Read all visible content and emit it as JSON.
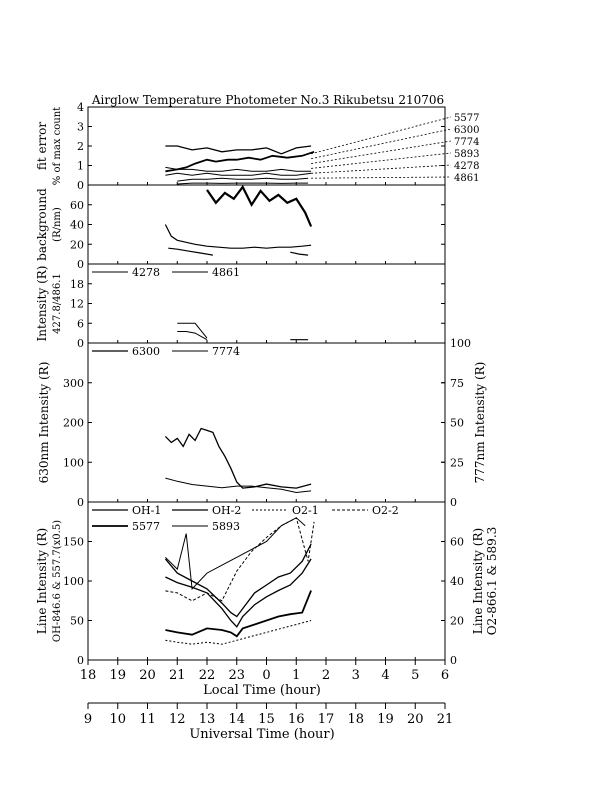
{
  "title": "Airglow Temperature Photometer No.3  Rikubetsu   210706",
  "axes": {
    "local_time_label": "Local Time (hour)",
    "universal_time_label": "Universal Time (hour)",
    "local_ticks": [
      "18",
      "19",
      "20",
      "21",
      "22",
      "23",
      "0",
      "1",
      "2",
      "3",
      "4",
      "5",
      "6"
    ],
    "universal_ticks": [
      "9",
      "10",
      "11",
      "12",
      "13",
      "14",
      "15",
      "16",
      "17",
      "18",
      "19",
      "20",
      "21"
    ]
  },
  "chart_data": [
    {
      "type": "line",
      "panel": "fit-error",
      "ylabel": [
        "fit error",
        "% of max count"
      ],
      "ylim": [
        0,
        4
      ],
      "yticks": [
        "0",
        "1",
        "2",
        "3",
        "4"
      ],
      "x_unit": "local hour (18 = 18:00, 30 = 06:00 next day)",
      "right_labels": [
        "5577",
        "6300",
        "7774",
        "5893",
        "4278",
        "4861"
      ],
      "series": [
        {
          "name": "6300",
          "x": [
            20.6,
            21,
            21.5,
            22,
            22.5,
            23,
            23.5,
            24,
            24.5,
            25,
            25.5
          ],
          "y": [
            2.0,
            2.0,
            1.8,
            1.9,
            1.7,
            1.8,
            1.8,
            1.9,
            1.6,
            1.9,
            2.0
          ]
        },
        {
          "name": "5577",
          "x": [
            20.6,
            21,
            21.3,
            21.6,
            22,
            22.3,
            22.7,
            23,
            23.4,
            23.8,
            24.2,
            24.7,
            25.2,
            25.6
          ],
          "y": [
            0.7,
            0.8,
            0.9,
            1.1,
            1.3,
            1.2,
            1.3,
            1.3,
            1.4,
            1.3,
            1.5,
            1.4,
            1.5,
            1.7
          ]
        },
        {
          "name": "7774",
          "x": [
            20.6,
            21,
            21.5,
            22,
            22.5,
            23,
            23.5,
            24,
            24.5,
            25,
            25.5
          ],
          "y": [
            0.9,
            0.8,
            0.8,
            0.7,
            0.7,
            0.8,
            0.7,
            0.7,
            0.8,
            0.7,
            0.7
          ]
        },
        {
          "name": "5893",
          "x": [
            20.6,
            21,
            21.5,
            22,
            22.5,
            23,
            23.5,
            24,
            24.5,
            25,
            25.5
          ],
          "y": [
            0.5,
            0.6,
            0.5,
            0.6,
            0.5,
            0.5,
            0.5,
            0.6,
            0.5,
            0.5,
            0.6
          ]
        },
        {
          "name": "4278",
          "x": [
            21,
            21.5,
            22,
            22.5,
            23,
            23.5,
            24,
            24.5,
            25,
            25.4
          ],
          "y": [
            0.2,
            0.3,
            0.3,
            0.35,
            0.3,
            0.3,
            0.35,
            0.3,
            0.3,
            0.35
          ]
        },
        {
          "name": "4861",
          "x": [
            21,
            21.5,
            22,
            22.5,
            23,
            23.5,
            24,
            24.5,
            25,
            25.4
          ],
          "y": [
            0.05,
            0.1,
            0.1,
            0.08,
            0.1,
            0.1,
            0.1,
            0.08,
            0.1,
            0.1
          ]
        }
      ]
    },
    {
      "type": "line",
      "panel": "background",
      "ylabel": [
        "background",
        "(R/nm)"
      ],
      "ylim": [
        0,
        80
      ],
      "yticks": [
        "0",
        "20",
        "40",
        "60"
      ],
      "series": [
        {
          "name": "bg-1",
          "x": [
            20.6,
            20.8,
            21,
            21.3,
            21.6,
            22,
            22.4,
            22.8,
            23.2,
            23.6,
            24,
            24.4,
            24.8,
            25.2,
            25.5
          ],
          "y": [
            40,
            28,
            24,
            22,
            20,
            18,
            17,
            16,
            16,
            17,
            16,
            17,
            17,
            18,
            19
          ]
        },
        {
          "name": "bg-2",
          "x": [
            20.7,
            21,
            21.4,
            21.8,
            22.2
          ],
          "y": [
            16,
            15,
            13,
            11,
            9
          ]
        },
        {
          "name": "bg-3",
          "x": [
            22,
            22.3,
            22.6,
            22.9,
            23.2,
            23.5,
            23.8,
            24.1,
            24.4,
            24.7,
            25,
            25.3,
            25.5
          ],
          "y": [
            75,
            62,
            72,
            66,
            78,
            60,
            74,
            64,
            70,
            62,
            66,
            52,
            38
          ]
        },
        {
          "name": "bg-4",
          "x": [
            24.8,
            25.1,
            25.4
          ],
          "y": [
            12,
            10,
            9
          ]
        }
      ]
    },
    {
      "type": "line",
      "panel": "blue-lines",
      "ylabel": [
        "Intensity (R)",
        "427.8/486.1"
      ],
      "ylim": [
        0,
        24
      ],
      "yticks": [
        "0",
        "6",
        "12",
        "18"
      ],
      "legend": [
        "4278",
        "4861"
      ],
      "series": [
        {
          "name": "4278",
          "x": [
            21,
            21.3,
            21.6,
            22
          ],
          "y": [
            6,
            6,
            6,
            1.5
          ]
        },
        {
          "name": "4861",
          "x": [
            21,
            21.3,
            21.6,
            22
          ],
          "y": [
            3.5,
            3.5,
            3.0,
            1.0
          ]
        },
        {
          "name": "4861-tail",
          "x": [
            24.8,
            25.4
          ],
          "y": [
            1,
            1
          ]
        }
      ]
    },
    {
      "type": "line",
      "panel": "oi-red-green",
      "ylabel": "630nm Intensity (R)",
      "ylabel_right": "777nm Intensity (R)",
      "ylim": [
        0,
        400
      ],
      "ylim_right": [
        0,
        100
      ],
      "yticks": [
        "0",
        "100",
        "200",
        "300"
      ],
      "yticks_right": [
        "0",
        "25",
        "50",
        "75",
        "100"
      ],
      "legend": [
        "6300",
        "7774"
      ],
      "series": [
        {
          "name": "6300",
          "x": [
            20.6,
            20.8,
            21,
            21.2,
            21.4,
            21.6,
            21.8,
            22,
            22.2,
            22.4,
            22.6,
            22.8,
            23,
            23.2,
            23.6,
            24,
            24.5,
            25,
            25.5
          ],
          "y": [
            165,
            150,
            160,
            140,
            170,
            155,
            185,
            180,
            175,
            140,
            115,
            85,
            50,
            35,
            38,
            45,
            38,
            35,
            45
          ]
        },
        {
          "name": "7774",
          "x": [
            20.6,
            21,
            21.5,
            22,
            22.5,
            23,
            23.5,
            24,
            24.5,
            25,
            25.5
          ],
          "y": [
            15,
            13,
            11,
            10,
            9,
            10,
            10,
            9,
            8,
            6,
            7
          ]
        }
      ]
    },
    {
      "type": "line",
      "panel": "line-intensity",
      "ylabel": [
        "Line Intensity (R)",
        "OH-846.6 & 557.7(x0.5)"
      ],
      "ylabel_right": [
        "Line Intensity (R)",
        "O2-866.1 & 589.3"
      ],
      "ylim": [
        0,
        200
      ],
      "ylim_right": [
        0,
        80
      ],
      "yticks": [
        "0",
        "50",
        "100",
        "150"
      ],
      "yticks_right": [
        "0",
        "20",
        "40",
        "60"
      ],
      "legend": [
        "OH-1",
        "OH-2",
        "O2-1",
        "O2-2",
        "5577",
        "5893"
      ],
      "series": [
        {
          "name": "OH-1",
          "x": [
            20.6,
            21,
            21.5,
            22,
            22.5,
            22.8,
            23,
            23.2,
            23.6,
            24,
            24.4,
            24.8,
            25.2,
            25.5
          ],
          "y": [
            128,
            110,
            100,
            90,
            72,
            60,
            55,
            65,
            85,
            95,
            105,
            110,
            125,
            147
          ]
        },
        {
          "name": "OH-2",
          "x": [
            20.6,
            21,
            21.5,
            22,
            22.5,
            22.8,
            23,
            23.2,
            23.6,
            24,
            24.4,
            24.8,
            25.2,
            25.5
          ],
          "y": [
            105,
            98,
            92,
            85,
            65,
            50,
            42,
            55,
            70,
            80,
            88,
            95,
            110,
            128
          ]
        },
        {
          "name": "5577",
          "x": [
            20.6,
            21,
            21.5,
            22,
            22.5,
            22.8,
            23,
            23.2,
            23.6,
            24,
            24.4,
            24.8,
            25.2,
            25.5
          ],
          "y": [
            38,
            35,
            32,
            40,
            38,
            35,
            30,
            40,
            45,
            50,
            55,
            58,
            60,
            88
          ]
        },
        {
          "name": "O2-1",
          "x": [
            20.6,
            21,
            21.5,
            22,
            22.5,
            23,
            23.5,
            24,
            24.5,
            25,
            25.5
          ],
          "y": [
            10,
            9,
            8,
            9,
            8,
            10,
            12,
            14,
            16,
            18,
            20
          ]
        },
        {
          "name": "O2-2",
          "x": [
            20.6,
            21,
            21.5,
            22,
            22.5,
            23,
            23.5,
            24,
            24.5,
            25,
            25.4,
            25.6
          ],
          "y": [
            35,
            34,
            30,
            34,
            30,
            45,
            55,
            62,
            68,
            72,
            50,
            70
          ]
        },
        {
          "name": "5893",
          "x": [
            20.6,
            21,
            21.3,
            21.5,
            22,
            22.5,
            23,
            23.5,
            24,
            24.5,
            25,
            25.3
          ],
          "y": [
            130,
            115,
            160,
            90,
            110,
            120,
            130,
            140,
            150,
            170,
            180,
            170
          ]
        }
      ]
    }
  ]
}
